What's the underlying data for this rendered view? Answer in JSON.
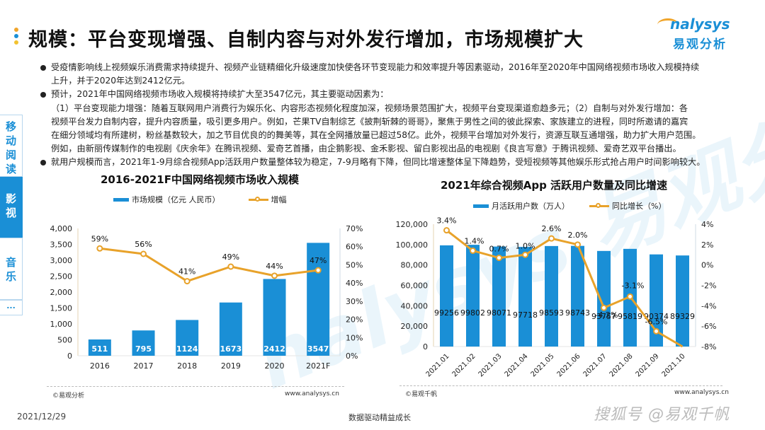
{
  "header": {
    "title": "规模：平台变现增强、自制内容与对外发行增加，市场规模扩大",
    "title_dot_colors": [
      "#f0a52b",
      "#1a8fd6",
      "#f2c230"
    ],
    "logo_en": "nalysys",
    "logo_cn": "易观分析"
  },
  "side_tabs": [
    {
      "label": "移动阅读",
      "active": false
    },
    {
      "label": "影视",
      "active": true
    },
    {
      "label": "音乐",
      "active": false
    },
    {
      "label": "...",
      "active": false
    }
  ],
  "bullets": {
    "b1_l1": "受疫情影响线上视频娱乐消费需求持续提升、视频产业链精细化升级速度加快使各环节变现能力和效率提升等因素驱动，2016年至2020年中国网络视频市场收入规模持续",
    "b1_l2": "上升，并于2020年达到2412亿元。",
    "b2_l1": "预计，2021年中国网络视频市场收入规模将持续扩大至3547亿元，其主要驱动因素为：",
    "b2_l2": "（1）平台变现能力增强：随着互联网用户消费行为娱乐化、内容形态视频化程度加深，视频场景范围扩大，视频平台变现渠道愈趋多元；（2）自制与对外发行增加：各",
    "b2_l3": "视频平台发力自制内容，提升内容质量，吸引更多用户。例如，芒果TV自制综艺《披荆斩棘的哥哥》，聚焦于男性之间的彼此探索、家族建立的进程，同时所邀请的嘉宾",
    "b2_l4": "在细分领域均有所建树，粉丝基数较大，加之节目优良的的舞美等，其在全网播放量已超过58亿。此外，视频平台增加对外发行，资源互联互通增强，助力扩大用户范围。",
    "b2_l5": "例如，由新丽传媒制作的电视剧《庆余年》在腾讯视频、爱奇艺首播，由企鹅影视、金禾影视、留白影视出品的电视剧《良言写意》于腾讯视频、爱奇艺双平台播出。",
    "b3_l1": "就用户规模而言，2021年1-9月综合视频App活跃用户数量整体较为稳定，7-9月略有下降，但同比增速整体呈下降趋势，受短视频等其他娱乐形式抢占用户时间影响较大。"
  },
  "watermark": "nalysys 易观分析",
  "chart_left": {
    "source": "©易观分析",
    "site": "www.analysys.cn"
  },
  "chart_right": {
    "source": "©易观千帆",
    "site": "www.analysys.cn"
  },
  "colors": {
    "bar": "#1a8fd6",
    "line": "#e8a22a",
    "accent": "#1a8fd6"
  },
  "chart_data": [
    {
      "type": "bar",
      "title": "2016-2021F中国网络视频市场收入规模",
      "categories": [
        "2016",
        "2017",
        "2018",
        "2019",
        "2020",
        "2021F"
      ],
      "series": [
        {
          "name": "市场规模（亿元 人民币）",
          "type": "bar",
          "axis": "left",
          "values": [
            511,
            795,
            1124,
            1673,
            2412,
            3547
          ]
        },
        {
          "name": "增幅",
          "type": "line",
          "axis": "right",
          "values": [
            59,
            56,
            41,
            49,
            44,
            47
          ],
          "labels": [
            "59%",
            "56%",
            "41%",
            "49%",
            "44%",
            "47%"
          ]
        }
      ],
      "y_left": {
        "min": 0,
        "max": 4000,
        "ticks": [
          "4,000",
          "3,500",
          "3,000",
          "2,500",
          "2,000",
          "1,500",
          "1,000",
          "500",
          "0"
        ]
      },
      "y_right": {
        "min": 0,
        "max": 70,
        "ticks": [
          "70%",
          "60%",
          "50%",
          "40%",
          "30%",
          "20%",
          "10%",
          "0%"
        ]
      },
      "xlabel": "",
      "ylabel": "",
      "legend_position": "top",
      "grid": false
    },
    {
      "type": "bar",
      "title": "2021年综合视频App 活跃用户数量及同比增速",
      "categories": [
        "2021.01",
        "2021.02",
        "2021.03",
        "2021.04",
        "2021.05",
        "2021.06",
        "2021.07",
        "2021.08",
        "2021.09",
        "2021.10"
      ],
      "series": [
        {
          "name": "月活跃用户数（万人）",
          "type": "bar",
          "axis": "left",
          "values": [
            99256,
            99802,
            98071,
            97718,
            98593,
            98743,
            93757,
            95819,
            90374,
            89329
          ]
        },
        {
          "name": "同比增长（%）",
          "type": "line",
          "axis": "right",
          "values": [
            3.4,
            1.4,
            0.7,
            1.0,
            2.6,
            2.0,
            -4.2,
            -3.1,
            -6.5,
            -8.0
          ],
          "labels": [
            "3.4%",
            "1.4%",
            "0.7%",
            "1.0%",
            "2.6%",
            "2.0%",
            "-4.2%",
            "-3.1%",
            "-6.5%",
            ""
          ]
        }
      ],
      "y_left": {
        "min": 0,
        "max": 120000,
        "ticks": [
          "120,000",
          "100,000",
          "80,000",
          "60,000",
          "40,000",
          "20,000",
          "0"
        ]
      },
      "y_right": {
        "min": -8,
        "max": 4,
        "ticks": [
          "4%",
          "2%",
          "0%",
          "-2%",
          "-4%",
          "-6%",
          "-8%"
        ]
      },
      "xlabel": "",
      "ylabel": "",
      "legend_position": "top",
      "grid": false
    }
  ],
  "footer": {
    "date": "2021/12/29",
    "center": "数据驱动精益成长",
    "watermark": "搜狐号 @易观千帆"
  }
}
